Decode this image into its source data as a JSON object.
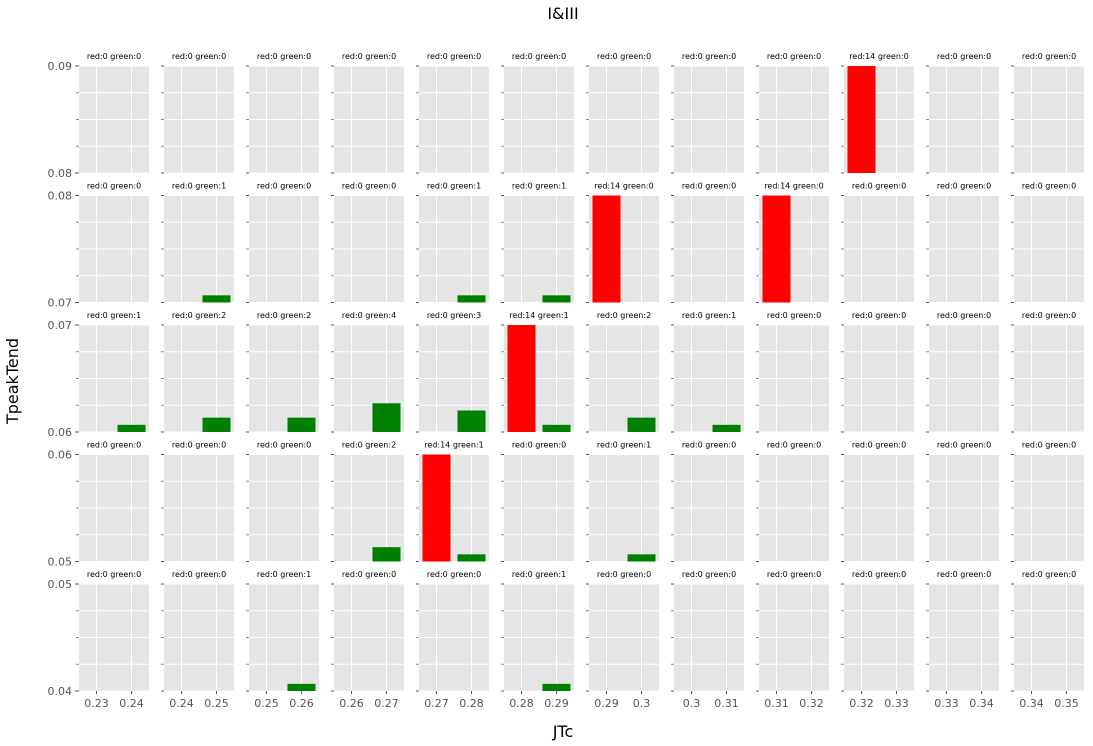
{
  "figure": {
    "title": "I&III",
    "xlabel": "JTc",
    "ylabel": "TpeakTend"
  },
  "colors": {
    "panel_bg": "#e5e5e5",
    "grid": "#ffffff",
    "red": "#ff0000",
    "green": "#008000",
    "tick_text": "#555555"
  },
  "chart_data": {
    "type": "bar",
    "grid": true,
    "rows": [
      {
        "ylim": [
          0.08,
          0.09
        ],
        "yticks": [
          0.08,
          0.09
        ],
        "ytick_labels": [
          "0.08",
          "0.09"
        ]
      },
      {
        "ylim": [
          0.07,
          0.08
        ],
        "yticks": [
          0.07,
          0.08
        ],
        "ytick_labels": [
          "0.07",
          "0.08"
        ]
      },
      {
        "ylim": [
          0.06,
          0.07
        ],
        "yticks": [
          0.06,
          0.07
        ],
        "ytick_labels": [
          "0.06",
          "0.07"
        ]
      },
      {
        "ylim": [
          0.05,
          0.06
        ],
        "yticks": [
          0.05,
          0.06
        ],
        "ytick_labels": [
          "0.05",
          "0.06"
        ]
      },
      {
        "ylim": [
          0.04,
          0.05
        ],
        "yticks": [
          0.04,
          0.05
        ],
        "ytick_labels": [
          "0.04",
          "0.05"
        ]
      }
    ],
    "columns": [
      {
        "xlim": [
          0.225,
          0.245
        ],
        "xticks": [
          0.23,
          0.24
        ],
        "xtick_labels": [
          "0.23",
          "0.24"
        ]
      },
      {
        "xlim": [
          0.235,
          0.255
        ],
        "xticks": [
          0.24,
          0.25
        ],
        "xtick_labels": [
          "0.24",
          "0.25"
        ]
      },
      {
        "xlim": [
          0.245,
          0.265
        ],
        "xticks": [
          0.25,
          0.26
        ],
        "xtick_labels": [
          "0.25",
          "0.26"
        ]
      },
      {
        "xlim": [
          0.255,
          0.275
        ],
        "xticks": [
          0.26,
          0.27
        ],
        "xtick_labels": [
          "0.26",
          "0.27"
        ]
      },
      {
        "xlim": [
          0.265,
          0.285
        ],
        "xticks": [
          0.27,
          0.28
        ],
        "xtick_labels": [
          "0.27",
          "0.28"
        ]
      },
      {
        "xlim": [
          0.275,
          0.295
        ],
        "xticks": [
          0.28,
          0.29
        ],
        "xtick_labels": [
          "0.28",
          "0.29"
        ]
      },
      {
        "xlim": [
          0.285,
          0.305
        ],
        "xticks": [
          0.29,
          0.3
        ],
        "xtick_labels": [
          "0.29",
          "0.3"
        ]
      },
      {
        "xlim": [
          0.295,
          0.315
        ],
        "xticks": [
          0.3,
          0.31
        ],
        "xtick_labels": [
          "0.3",
          "0.31"
        ]
      },
      {
        "xlim": [
          0.305,
          0.325
        ],
        "xticks": [
          0.31,
          0.32
        ],
        "xtick_labels": [
          "0.31",
          "0.32"
        ]
      },
      {
        "xlim": [
          0.315,
          0.335
        ],
        "xticks": [
          0.32,
          0.33
        ],
        "xtick_labels": [
          "0.32",
          "0.33"
        ]
      },
      {
        "xlim": [
          0.325,
          0.345
        ],
        "xticks": [
          0.33,
          0.34
        ],
        "xtick_labels": [
          "0.33",
          "0.34"
        ]
      },
      {
        "xlim": [
          0.335,
          0.355
        ],
        "xticks": [
          0.34,
          0.35
        ],
        "xtick_labels": [
          "0.34",
          "0.35"
        ]
      }
    ],
    "panels": [
      {
        "row": 0,
        "col": 0,
        "title": "red:0 green:0",
        "red": 0,
        "green": 0
      },
      {
        "row": 0,
        "col": 1,
        "title": "red:0 green:0",
        "red": 0,
        "green": 0
      },
      {
        "row": 0,
        "col": 2,
        "title": "red:0 green:0",
        "red": 0,
        "green": 0
      },
      {
        "row": 0,
        "col": 3,
        "title": "red:0 green:0",
        "red": 0,
        "green": 0
      },
      {
        "row": 0,
        "col": 4,
        "title": "red:0 green:0",
        "red": 0,
        "green": 0
      },
      {
        "row": 0,
        "col": 5,
        "title": "red:0 green:0",
        "red": 0,
        "green": 0
      },
      {
        "row": 0,
        "col": 6,
        "title": "red:0 green:0",
        "red": 0,
        "green": 0
      },
      {
        "row": 0,
        "col": 7,
        "title": "red:0 green:0",
        "red": 0,
        "green": 0
      },
      {
        "row": 0,
        "col": 8,
        "title": "red:0 green:0",
        "red": 0,
        "green": 0
      },
      {
        "row": 0,
        "col": 9,
        "title": "red:14 green:0",
        "red": 14,
        "green": 0
      },
      {
        "row": 0,
        "col": 10,
        "title": "red:0 green:0",
        "red": 0,
        "green": 0
      },
      {
        "row": 0,
        "col": 11,
        "title": "red:0 green:0",
        "red": 0,
        "green": 0
      },
      {
        "row": 1,
        "col": 0,
        "title": "red:0 green:0",
        "red": 0,
        "green": 0
      },
      {
        "row": 1,
        "col": 1,
        "title": "red:0 green:1",
        "red": 0,
        "green": 1
      },
      {
        "row": 1,
        "col": 2,
        "title": "red:0 green:0",
        "red": 0,
        "green": 0
      },
      {
        "row": 1,
        "col": 3,
        "title": "red:0 green:0",
        "red": 0,
        "green": 0
      },
      {
        "row": 1,
        "col": 4,
        "title": "red:0 green:1",
        "red": 0,
        "green": 1
      },
      {
        "row": 1,
        "col": 5,
        "title": "red:0 green:1",
        "red": 0,
        "green": 1
      },
      {
        "row": 1,
        "col": 6,
        "title": "red:14 green:0",
        "red": 14,
        "green": 0
      },
      {
        "row": 1,
        "col": 7,
        "title": "red:0 green:0",
        "red": 0,
        "green": 0
      },
      {
        "row": 1,
        "col": 8,
        "title": "red:14 green:0",
        "red": 14,
        "green": 0
      },
      {
        "row": 1,
        "col": 9,
        "title": "red:0 green:0",
        "red": 0,
        "green": 0
      },
      {
        "row": 1,
        "col": 10,
        "title": "red:0 green:0",
        "red": 0,
        "green": 0
      },
      {
        "row": 1,
        "col": 11,
        "title": "red:0 green:0",
        "red": 0,
        "green": 0
      },
      {
        "row": 2,
        "col": 0,
        "title": "red:0 green:1",
        "red": 0,
        "green": 1
      },
      {
        "row": 2,
        "col": 1,
        "title": "red:0 green:2",
        "red": 0,
        "green": 2
      },
      {
        "row": 2,
        "col": 2,
        "title": "red:0 green:2",
        "red": 0,
        "green": 2
      },
      {
        "row": 2,
        "col": 3,
        "title": "red:0 green:4",
        "red": 0,
        "green": 4
      },
      {
        "row": 2,
        "col": 4,
        "title": "red:0 green:3",
        "red": 0,
        "green": 3
      },
      {
        "row": 2,
        "col": 5,
        "title": "red:14 green:1",
        "red": 14,
        "green": 1
      },
      {
        "row": 2,
        "col": 6,
        "title": "red:0 green:2",
        "red": 0,
        "green": 2
      },
      {
        "row": 2,
        "col": 7,
        "title": "red:0 green:1",
        "red": 0,
        "green": 1
      },
      {
        "row": 2,
        "col": 8,
        "title": "red:0 green:0",
        "red": 0,
        "green": 0
      },
      {
        "row": 2,
        "col": 9,
        "title": "red:0 green:0",
        "red": 0,
        "green": 0
      },
      {
        "row": 2,
        "col": 10,
        "title": "red:0 green:0",
        "red": 0,
        "green": 0
      },
      {
        "row": 2,
        "col": 11,
        "title": "red:0 green:0",
        "red": 0,
        "green": 0
      },
      {
        "row": 3,
        "col": 0,
        "title": "red:0 green:0",
        "red": 0,
        "green": 0
      },
      {
        "row": 3,
        "col": 1,
        "title": "red:0 green:0",
        "red": 0,
        "green": 0
      },
      {
        "row": 3,
        "col": 2,
        "title": "red:0 green:0",
        "red": 0,
        "green": 0
      },
      {
        "row": 3,
        "col": 3,
        "title": "red:0 green:2",
        "red": 0,
        "green": 2
      },
      {
        "row": 3,
        "col": 4,
        "title": "red:14 green:1",
        "red": 14,
        "green": 1
      },
      {
        "row": 3,
        "col": 5,
        "title": "red:0 green:0",
        "red": 0,
        "green": 0
      },
      {
        "row": 3,
        "col": 6,
        "title": "red:0 green:1",
        "red": 0,
        "green": 1
      },
      {
        "row": 3,
        "col": 7,
        "title": "red:0 green:0",
        "red": 0,
        "green": 0
      },
      {
        "row": 3,
        "col": 8,
        "title": "red:0 green:0",
        "red": 0,
        "green": 0
      },
      {
        "row": 3,
        "col": 9,
        "title": "red:0 green:0",
        "red": 0,
        "green": 0
      },
      {
        "row": 3,
        "col": 10,
        "title": "red:0 green:0",
        "red": 0,
        "green": 0
      },
      {
        "row": 3,
        "col": 11,
        "title": "red:0 green:0",
        "red": 0,
        "green": 0
      },
      {
        "row": 4,
        "col": 0,
        "title": "red:0 green:0",
        "red": 0,
        "green": 0
      },
      {
        "row": 4,
        "col": 1,
        "title": "red:0 green:0",
        "red": 0,
        "green": 0
      },
      {
        "row": 4,
        "col": 2,
        "title": "red:0 green:1",
        "red": 0,
        "green": 1
      },
      {
        "row": 4,
        "col": 3,
        "title": "red:0 green:0",
        "red": 0,
        "green": 0
      },
      {
        "row": 4,
        "col": 4,
        "title": "red:0 green:0",
        "red": 0,
        "green": 0
      },
      {
        "row": 4,
        "col": 5,
        "title": "red:0 green:1",
        "red": 0,
        "green": 1
      },
      {
        "row": 4,
        "col": 6,
        "title": "red:0 green:0",
        "red": 0,
        "green": 0
      },
      {
        "row": 4,
        "col": 7,
        "title": "red:0 green:0",
        "red": 0,
        "green": 0
      },
      {
        "row": 4,
        "col": 8,
        "title": "red:0 green:0",
        "red": 0,
        "green": 0
      },
      {
        "row": 4,
        "col": 9,
        "title": "red:0 green:0",
        "red": 0,
        "green": 0
      },
      {
        "row": 4,
        "col": 10,
        "title": "red:0 green:0",
        "red": 0,
        "green": 0
      },
      {
        "row": 4,
        "col": 11,
        "title": "red:0 green:0",
        "red": 0,
        "green": 0
      }
    ]
  }
}
